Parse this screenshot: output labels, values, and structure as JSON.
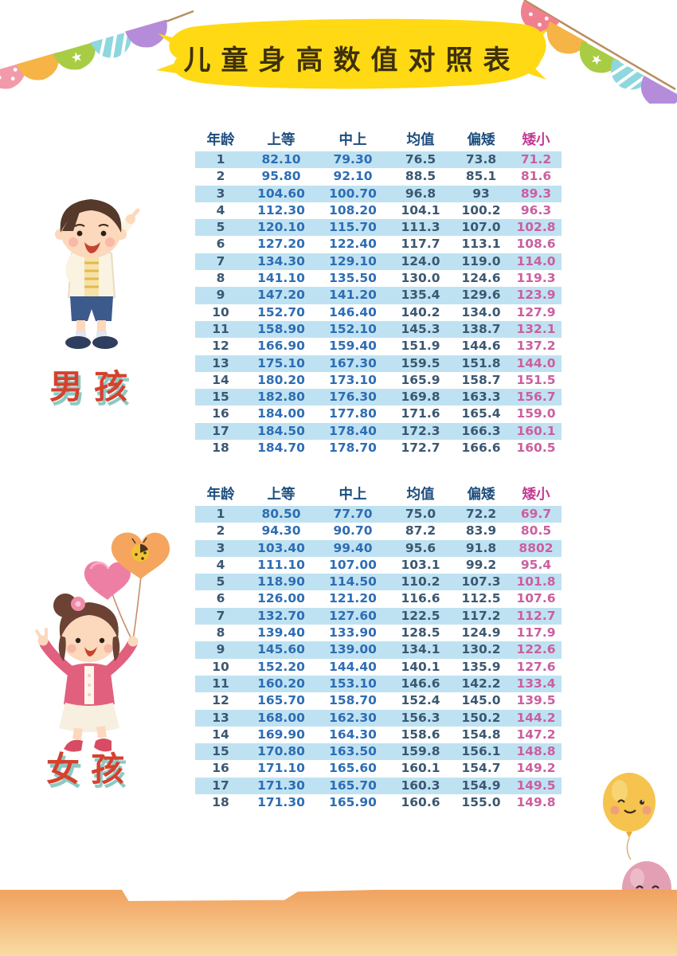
{
  "title": "儿童身高数值对照表",
  "sections": {
    "boys": {
      "label": "男孩"
    },
    "girls": {
      "label": "女孩"
    }
  },
  "table": {
    "columns": [
      "年龄",
      "上等",
      "中上",
      "均值",
      "偏矮",
      "矮小"
    ],
    "boys_rows": [
      [
        "1",
        "82.10",
        "79.30",
        "76.5",
        "73.8",
        "71.2"
      ],
      [
        "2",
        "95.80",
        "92.10",
        "88.5",
        "85.1",
        "81.6"
      ],
      [
        "3",
        "104.60",
        "100.70",
        "96.8",
        "93",
        "89.3"
      ],
      [
        "4",
        "112.30",
        "108.20",
        "104.1",
        "100.2",
        "96.3"
      ],
      [
        "5",
        "120.10",
        "115.70",
        "111.3",
        "107.0",
        "102.8"
      ],
      [
        "6",
        "127.20",
        "122.40",
        "117.7",
        "113.1",
        "108.6"
      ],
      [
        "7",
        "134.30",
        "129.10",
        "124.0",
        "119.0",
        "114.0"
      ],
      [
        "8",
        "141.10",
        "135.50",
        "130.0",
        "124.6",
        "119.3"
      ],
      [
        "9",
        "147.20",
        "141.20",
        "135.4",
        "129.6",
        "123.9"
      ],
      [
        "10",
        "152.70",
        "146.40",
        "140.2",
        "134.0",
        "127.9"
      ],
      [
        "11",
        "158.90",
        "152.10",
        "145.3",
        "138.7",
        "132.1"
      ],
      [
        "12",
        "166.90",
        "159.40",
        "151.9",
        "144.6",
        "137.2"
      ],
      [
        "13",
        "175.10",
        "167.30",
        "159.5",
        "151.8",
        "144.0"
      ],
      [
        "14",
        "180.20",
        "173.10",
        "165.9",
        "158.7",
        "151.5"
      ],
      [
        "15",
        "182.80",
        "176.30",
        "169.8",
        "163.3",
        "156.7"
      ],
      [
        "16",
        "184.00",
        "177.80",
        "171.6",
        "165.4",
        "159.0"
      ],
      [
        "17",
        "184.50",
        "178.40",
        "172.3",
        "166.3",
        "160.1"
      ],
      [
        "18",
        "184.70",
        "178.70",
        "172.7",
        "166.6",
        "160.5"
      ]
    ],
    "girls_rows": [
      [
        "1",
        "80.50",
        "77.70",
        "75.0",
        "72.2",
        "69.7"
      ],
      [
        "2",
        "94.30",
        "90.70",
        "87.2",
        "83.9",
        "80.5"
      ],
      [
        "3",
        "103.40",
        "99.40",
        "95.6",
        "91.8",
        "8802"
      ],
      [
        "4",
        "111.10",
        "107.00",
        "103.1",
        "99.2",
        "95.4"
      ],
      [
        "5",
        "118.90",
        "114.50",
        "110.2",
        "107.3",
        "101.8"
      ],
      [
        "6",
        "126.00",
        "121.20",
        "116.6",
        "112.5",
        "107.6"
      ],
      [
        "7",
        "132.70",
        "127.60",
        "122.5",
        "117.2",
        "112.7"
      ],
      [
        "8",
        "139.40",
        "133.90",
        "128.5",
        "124.9",
        "117.9"
      ],
      [
        "9",
        "145.60",
        "139.00",
        "134.1",
        "130.2",
        "122.6"
      ],
      [
        "10",
        "152.20",
        "144.40",
        "140.1",
        "135.9",
        "127.6"
      ],
      [
        "11",
        "160.20",
        "153.10",
        "146.6",
        "142.2",
        "133.4"
      ],
      [
        "12",
        "165.70",
        "158.70",
        "152.4",
        "145.0",
        "139.5"
      ],
      [
        "13",
        "168.00",
        "162.30",
        "156.3",
        "150.2",
        "144.2"
      ],
      [
        "14",
        "169.90",
        "164.30",
        "158.6",
        "154.8",
        "147.2"
      ],
      [
        "15",
        "170.80",
        "163.50",
        "159.8",
        "156.1",
        "148.8"
      ],
      [
        "16",
        "171.10",
        "165.60",
        "160.1",
        "154.7",
        "149.2"
      ],
      [
        "17",
        "171.30",
        "165.70",
        "160.3",
        "154.9",
        "149.5"
      ],
      [
        "18",
        "171.30",
        "165.90",
        "160.6",
        "155.0",
        "149.8"
      ]
    ]
  },
  "decorations": [
    "bunting-garland-left",
    "bunting-garland-right",
    "boy-illustration",
    "girl-illustration",
    "heart-balloons",
    "smiley-balloons",
    "orange-footer-band"
  ],
  "colors": {
    "stripe": "#bfe2f2",
    "header_text": "#1d4e7e",
    "header_last": "#c13a92",
    "value_blue": "#2e6db4",
    "value_dark": "#3b5872",
    "value_pink": "#cb5f9f",
    "title_bg": "#ffd913",
    "title_text": "#3d3008",
    "label_red": "#d6402f",
    "label_shadow": "#2e9e8f",
    "footer_top": "#ee8f44",
    "footer_bottom": "#f9dca4"
  }
}
